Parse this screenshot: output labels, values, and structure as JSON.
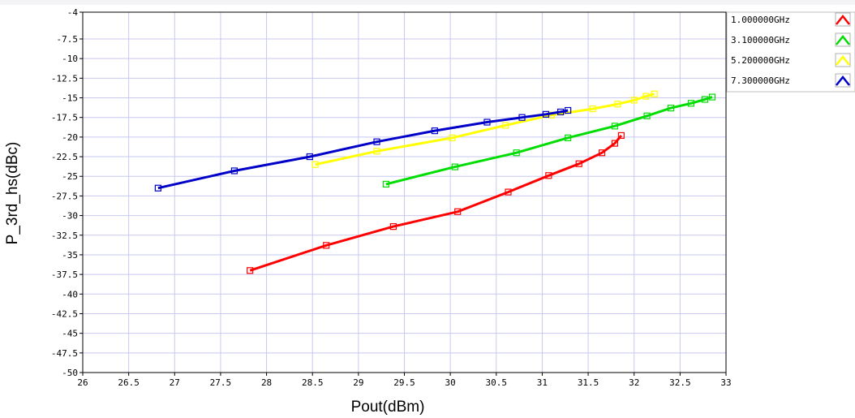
{
  "chart_data": {
    "type": "line",
    "title": "",
    "xlabel": "Pout(dBm)",
    "ylabel": "P_3rd_hs(dBc)",
    "xlim": [
      26,
      33
    ],
    "ylim": [
      -50,
      -4
    ],
    "x_ticks": [
      "26",
      "26.5",
      "27",
      "27.5",
      "28",
      "28.5",
      "29",
      "29.5",
      "30",
      "30.5",
      "31",
      "31.5",
      "32",
      "32.5",
      "33"
    ],
    "y_ticks": [
      "-4",
      "-7.5",
      "-10",
      "-12.5",
      "-15",
      "-17.5",
      "-20",
      "-22.5",
      "-25",
      "-27.5",
      "-30",
      "-32.5",
      "-35",
      "-37.5",
      "-40",
      "-42.5",
      "-45",
      "-47.5",
      "-50"
    ],
    "grid": true,
    "legend_position": "top-right",
    "series": [
      {
        "name": "1.000000GHz",
        "color": "#ff0000",
        "points": [
          [
            27.82,
            -37.0
          ],
          [
            28.65,
            -33.8
          ],
          [
            29.38,
            -31.4
          ],
          [
            30.08,
            -29.5
          ],
          [
            30.63,
            -27.0
          ],
          [
            31.07,
            -24.9
          ],
          [
            31.4,
            -23.4
          ],
          [
            31.65,
            -22.0
          ],
          [
            31.79,
            -20.8
          ],
          [
            31.86,
            -19.8
          ]
        ]
      },
      {
        "name": "3.100000GHz",
        "color": "#00dd00",
        "points": [
          [
            29.3,
            -26.0
          ],
          [
            30.05,
            -23.8
          ],
          [
            30.72,
            -22.0
          ],
          [
            31.28,
            -20.1
          ],
          [
            31.79,
            -18.6
          ],
          [
            32.14,
            -17.3
          ],
          [
            32.4,
            -16.3
          ],
          [
            32.62,
            -15.7
          ],
          [
            32.77,
            -15.2
          ],
          [
            32.85,
            -14.9
          ]
        ]
      },
      {
        "name": "5.200000GHz",
        "color": "#ffff00",
        "points": [
          [
            28.53,
            -23.5
          ],
          [
            29.2,
            -21.8
          ],
          [
            30.02,
            -20.1
          ],
          [
            30.6,
            -18.5
          ],
          [
            31.1,
            -17.2
          ],
          [
            31.55,
            -16.4
          ],
          [
            31.82,
            -15.8
          ],
          [
            32.0,
            -15.3
          ],
          [
            32.13,
            -14.8
          ],
          [
            32.22,
            -14.5
          ]
        ]
      },
      {
        "name": "7.300000GHz",
        "color": "#0000c8",
        "points": [
          [
            26.82,
            -26.5
          ],
          [
            27.65,
            -24.3
          ],
          [
            28.47,
            -22.5
          ],
          [
            29.2,
            -20.6
          ],
          [
            29.83,
            -19.2
          ],
          [
            30.4,
            -18.1
          ],
          [
            30.78,
            -17.5
          ],
          [
            31.04,
            -17.1
          ],
          [
            31.2,
            -16.8
          ],
          [
            31.28,
            -16.6
          ]
        ]
      }
    ]
  }
}
